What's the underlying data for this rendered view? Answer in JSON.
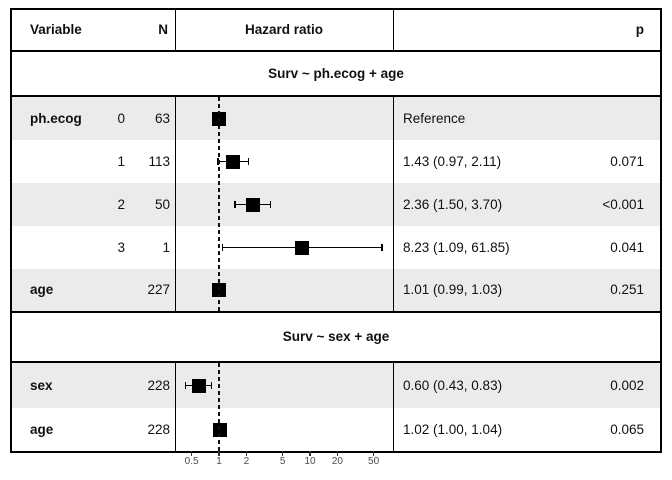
{
  "table": {
    "columns": {
      "variable": "Variable",
      "n": "N",
      "hazard_ratio": "Hazard ratio",
      "p": "p"
    }
  },
  "chart_data": {
    "type": "forest",
    "x_scale": "log",
    "x_ticks": [
      "0.5",
      "1",
      "2",
      "5",
      "10",
      "20",
      "50"
    ],
    "x_tick_values": [
      0.5,
      1,
      2,
      5,
      10,
      20,
      50
    ],
    "x_range": [
      0.42,
      72
    ],
    "reference_line": 1,
    "marker_color": "#000000",
    "shade_color": "#EBEBEB",
    "legend": "none",
    "models": [
      {
        "title": "Surv ~ ph.ecog + age",
        "rows": [
          {
            "variable": "ph.ecog",
            "level": "0",
            "n": "63",
            "hr": 1,
            "ci_low": null,
            "ci_high": null,
            "estimate": "Reference",
            "p": "",
            "shaded": true
          },
          {
            "variable": "",
            "level": "1",
            "n": "113",
            "hr": 1.43,
            "ci_low": 0.97,
            "ci_high": 2.11,
            "estimate": "1.43 (0.97, 2.11)",
            "p": "0.071",
            "shaded": false
          },
          {
            "variable": "",
            "level": "2",
            "n": "50",
            "hr": 2.36,
            "ci_low": 1.5,
            "ci_high": 3.7,
            "estimate": "2.36 (1.50, 3.70)",
            "p": "<0.001",
            "shaded": true
          },
          {
            "variable": "",
            "level": "3",
            "n": "1",
            "hr": 8.23,
            "ci_low": 1.09,
            "ci_high": 61.85,
            "estimate": "8.23 (1.09, 61.85)",
            "p": "0.041",
            "shaded": false
          },
          {
            "variable": "age",
            "level": "",
            "n": "227",
            "hr": 1.01,
            "ci_low": 0.99,
            "ci_high": 1.03,
            "estimate": "1.01 (0.99, 1.03)",
            "p": "0.251",
            "shaded": true
          }
        ]
      },
      {
        "title": "Surv ~ sex + age",
        "rows": [
          {
            "variable": "sex",
            "level": "",
            "n": "228",
            "hr": 0.6,
            "ci_low": 0.43,
            "ci_high": 0.83,
            "estimate": "0.60 (0.43, 0.83)",
            "p": "0.002",
            "shaded": true
          },
          {
            "variable": "age",
            "level": "",
            "n": "228",
            "hr": 1.02,
            "ci_low": 1.0,
            "ci_high": 1.04,
            "estimate": "1.02 (1.00, 1.04)",
            "p": "0.065",
            "shaded": false
          }
        ]
      }
    ]
  }
}
